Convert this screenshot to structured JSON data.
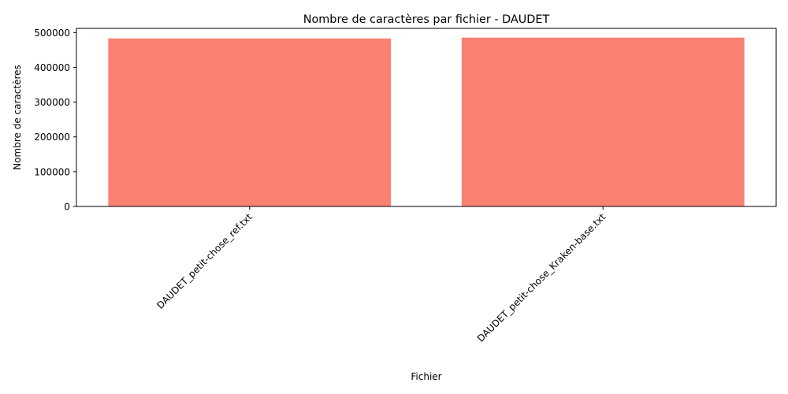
{
  "chart_data": {
    "type": "bar",
    "title": "Nombre de caractères par fichier - DAUDET",
    "xlabel": "Fichier",
    "ylabel": "Nombre de caractères",
    "categories": [
      "DAUDET_petit-chose_ref.txt",
      "DAUDET_petit-chose_Kraken-base.txt"
    ],
    "values": [
      483000,
      485500
    ],
    "ylim": [
      0,
      512000
    ],
    "yticks": [
      0,
      100000,
      200000,
      300000,
      400000,
      500000
    ],
    "ytick_labels": [
      "0",
      "100000",
      "200000",
      "300000",
      "400000",
      "500000"
    ],
    "grid": false,
    "bar_color": "#fa8072"
  }
}
